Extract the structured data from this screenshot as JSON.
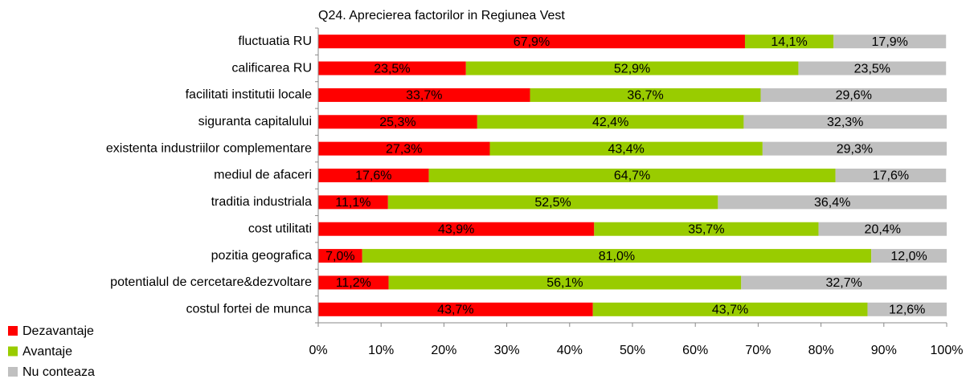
{
  "chart_data": {
    "type": "stacked-bar-horizontal",
    "title": "Q24. Aprecierea factorilor in Regiunea Vest",
    "categories": [
      "fluctuatia RU",
      "calificarea RU",
      "facilitati institutii locale",
      "siguranta capitalului",
      "existenta industriilor complementare",
      "mediul de afaceri",
      "traditia industriala",
      "cost utilitati",
      "pozitia geografica",
      "potentialul de cercetare&dezvoltare",
      "costul fortei de munca"
    ],
    "series": [
      {
        "name": "Dezavantaje",
        "color": "#ff0000",
        "values": [
          67.9,
          23.5,
          33.7,
          25.3,
          27.3,
          17.6,
          11.1,
          43.9,
          7.0,
          11.2,
          43.7
        ],
        "value_labels": [
          "67,9%",
          "23,5%",
          "33,7%",
          "25,3%",
          "27,3%",
          "17,6%",
          "11,1%",
          "43,9%",
          "7,0%",
          "11,2%",
          "43,7%"
        ]
      },
      {
        "name": "Avantaje",
        "color": "#99cc00",
        "values": [
          14.1,
          52.9,
          36.7,
          42.4,
          43.4,
          64.7,
          52.5,
          35.7,
          81.0,
          56.1,
          43.7
        ],
        "value_labels": [
          "14,1%",
          "52,9%",
          "36,7%",
          "42,4%",
          "43,4%",
          "64,7%",
          "52,5%",
          "35,7%",
          "81,0%",
          "56,1%",
          "43,7%"
        ]
      },
      {
        "name": "Nu conteaza",
        "color": "#c0c0c0",
        "values": [
          17.9,
          23.5,
          29.6,
          32.3,
          29.3,
          17.6,
          36.4,
          20.4,
          12.0,
          32.7,
          12.6
        ],
        "value_labels": [
          "17,9%",
          "23,5%",
          "29,6%",
          "32,3%",
          "29,3%",
          "17,6%",
          "36,4%",
          "20,4%",
          "12,0%",
          "32,7%",
          "12,6%"
        ]
      }
    ],
    "xlim": [
      0,
      100
    ],
    "xticks": [
      {
        "value": 0,
        "label": "0%"
      },
      {
        "value": 10,
        "label": "10%"
      },
      {
        "value": 20,
        "label": "20%"
      },
      {
        "value": 30,
        "label": "30%"
      },
      {
        "value": 40,
        "label": "40%"
      },
      {
        "value": 50,
        "label": "50%"
      },
      {
        "value": 60,
        "label": "60%"
      },
      {
        "value": 70,
        "label": "70%"
      },
      {
        "value": 80,
        "label": "80%"
      },
      {
        "value": 90,
        "label": "90%"
      },
      {
        "value": 100,
        "label": "100%"
      }
    ],
    "grid": false,
    "legend": "bottom-left"
  }
}
